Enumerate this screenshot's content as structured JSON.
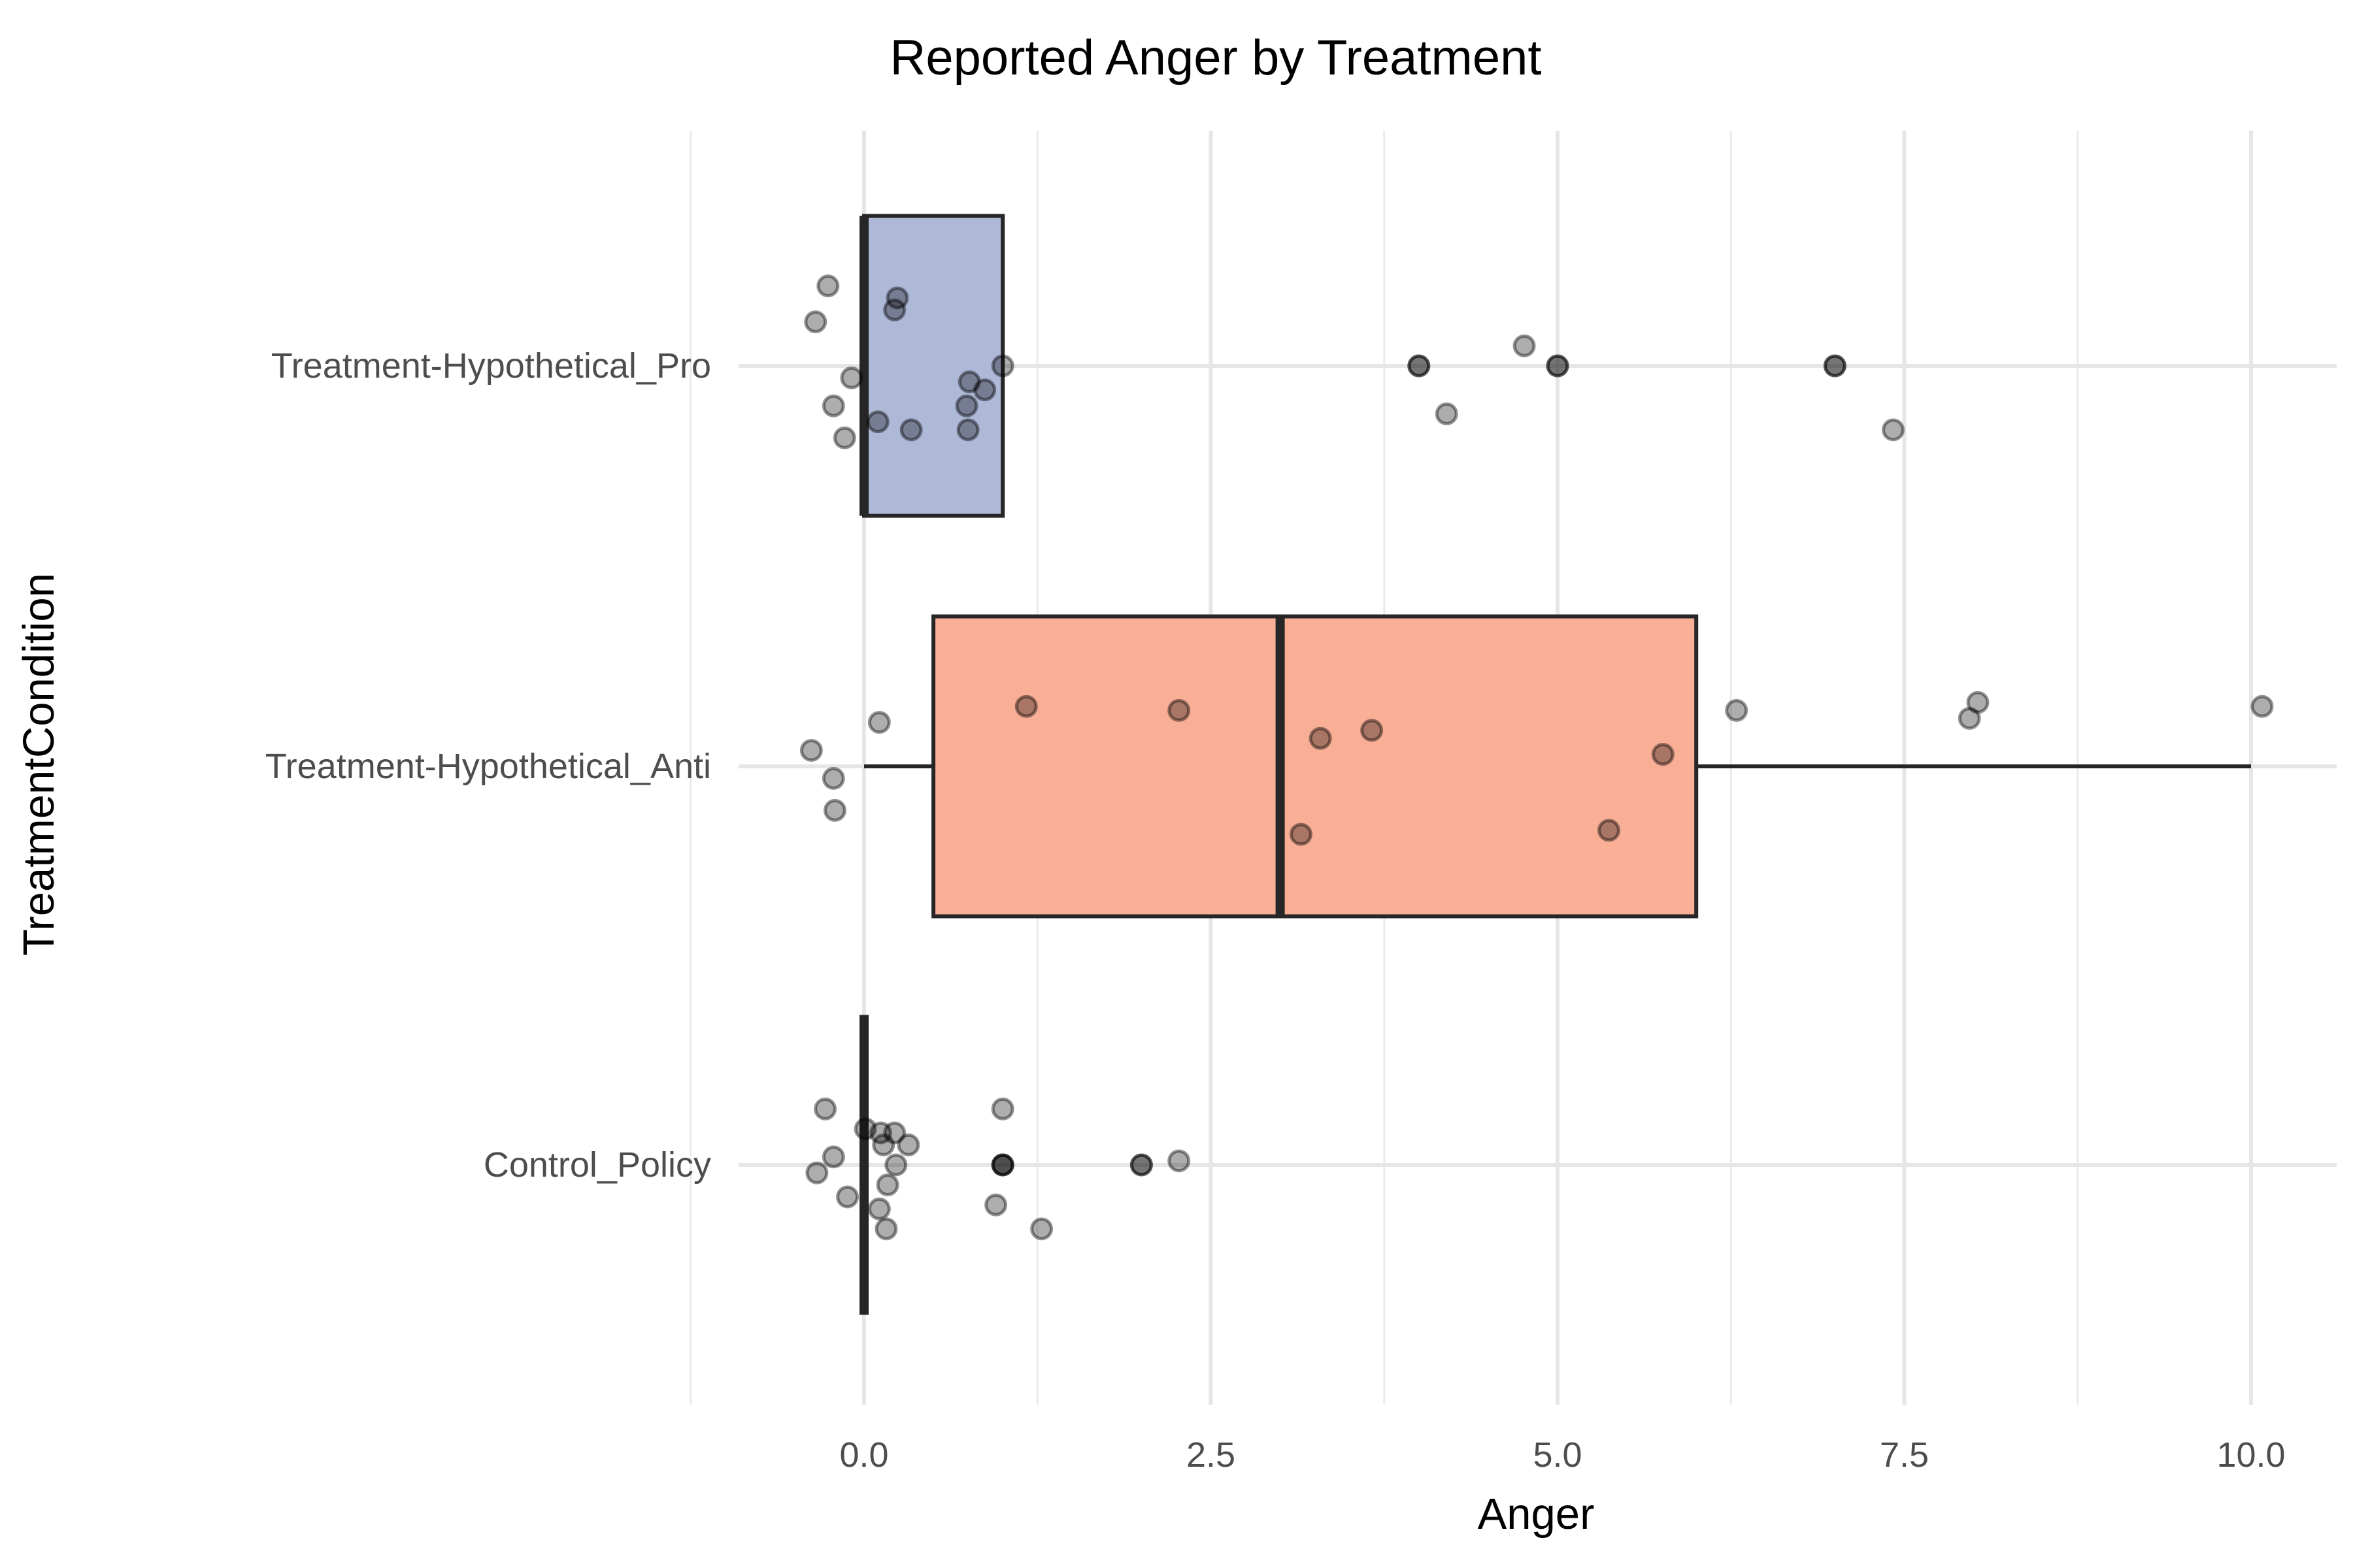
{
  "chart_data": {
    "type": "boxplot",
    "title": "Reported Anger by Treatment",
    "xlabel": "Anger",
    "ylabel": "TreatmentCondition",
    "xlim": [
      -0.5,
      10.4
    ],
    "xticks": [
      0.0,
      2.5,
      5.0,
      7.5,
      10.0
    ],
    "xtick_labels": [
      "0.0",
      "2.5",
      "5.0",
      "7.5",
      "10.0"
    ],
    "grid": true,
    "legend": "none",
    "categories": [
      "Treatment-Hypothetical_Pro",
      "Treatment-Hypothetical_Anti",
      "Control_Policy"
    ],
    "boxes": [
      {
        "category": "Treatment-Hypothetical_Pro",
        "fill": "#aeb9d8",
        "min": 0,
        "q1": 0,
        "median": 0,
        "q3": 1,
        "max": 1,
        "outliers": [
          4,
          5,
          7
        ],
        "points": [
          [
            -0.26,
            0.2
          ],
          [
            -0.35,
            0.11
          ],
          [
            0.24,
            0.17
          ],
          [
            0.22,
            0.14
          ],
          [
            1.0,
            0.0
          ],
          [
            -0.09,
            -0.03
          ],
          [
            0.76,
            -0.04
          ],
          [
            0.87,
            -0.06
          ],
          [
            -0.22,
            -0.1
          ],
          [
            0.74,
            -0.1
          ],
          [
            0.1,
            -0.14
          ],
          [
            0.34,
            -0.16
          ],
          [
            0.75,
            -0.16
          ],
          [
            -0.14,
            -0.18
          ],
          [
            4.0,
            0.0
          ],
          [
            4.0,
            0.0
          ],
          [
            5.0,
            0.0
          ],
          [
            5.0,
            0.0
          ],
          [
            7.0,
            0.0
          ],
          [
            7.0,
            0.0
          ],
          [
            4.76,
            0.05
          ],
          [
            4.2,
            -0.12
          ],
          [
            7.42,
            -0.16
          ]
        ]
      },
      {
        "category": "Treatment-Hypothetical_Anti",
        "fill": "#f9ae96",
        "min": 0,
        "q1": 0.5,
        "median": 3,
        "q3": 6,
        "max": 10,
        "outliers": [],
        "points": [
          [
            0.11,
            0.11
          ],
          [
            -0.38,
            0.04
          ],
          [
            -0.22,
            -0.03
          ],
          [
            -0.21,
            -0.11
          ],
          [
            1.17,
            0.15
          ],
          [
            2.27,
            0.14
          ],
          [
            3.29,
            0.07
          ],
          [
            3.66,
            0.09
          ],
          [
            5.76,
            0.03
          ],
          [
            3.15,
            -0.17
          ],
          [
            5.37,
            -0.16
          ],
          [
            6.29,
            0.14
          ],
          [
            7.97,
            0.12
          ],
          [
            8.03,
            0.16
          ],
          [
            10.08,
            0.15
          ]
        ]
      },
      {
        "category": "Control_Policy",
        "fill": "#66c2a5",
        "min": 0,
        "q1": 0,
        "median": 0,
        "q3": 0,
        "max": 0,
        "outliers": [
          1,
          2
        ],
        "points": [
          [
            -0.28,
            0.14
          ],
          [
            0.01,
            0.09
          ],
          [
            0.12,
            0.08
          ],
          [
            0.22,
            0.08
          ],
          [
            0.14,
            0.05
          ],
          [
            0.32,
            0.05
          ],
          [
            -0.22,
            0.02
          ],
          [
            -0.34,
            -0.02
          ],
          [
            0.23,
            0.0
          ],
          [
            0.17,
            -0.05
          ],
          [
            -0.12,
            -0.08
          ],
          [
            0.11,
            -0.11
          ],
          [
            0.16,
            -0.16
          ],
          [
            1.0,
            0.14
          ],
          [
            0.95,
            -0.1
          ],
          [
            1.28,
            -0.16
          ],
          [
            1.0,
            0.0
          ],
          [
            1.0,
            0.0
          ],
          [
            1.0,
            0.0
          ],
          [
            2.0,
            0.0
          ],
          [
            2.0,
            0.0
          ],
          [
            2.27,
            0.01
          ]
        ]
      }
    ]
  }
}
